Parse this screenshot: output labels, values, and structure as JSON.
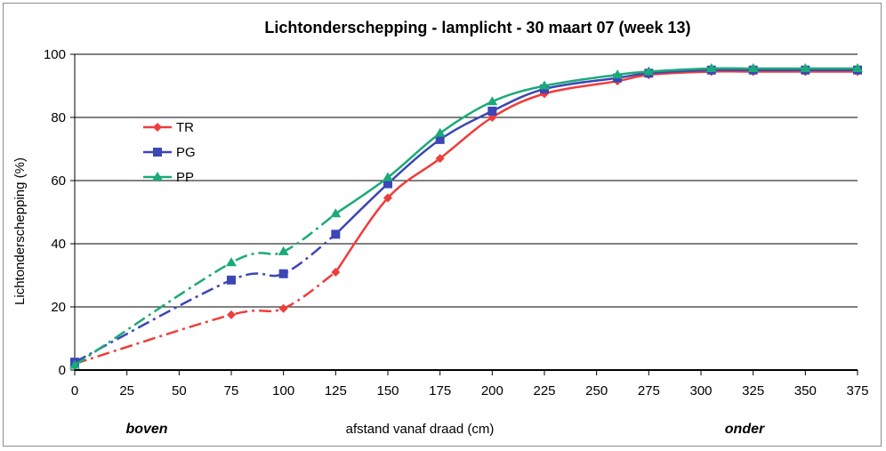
{
  "chart_data": {
    "type": "line",
    "title": "Lichtonderschepping - lamplicht  - 30 maart 07 (week 13)",
    "xlabel": "afstand vanaf draad (cm)",
    "ylabel": "Lichtonderschepping (%)",
    "xlim": [
      0,
      375
    ],
    "ylim": [
      0,
      100
    ],
    "x_ticks": [
      "0",
      "25",
      "50",
      "75",
      "100",
      "125",
      "150",
      "175",
      "200",
      "225",
      "250",
      "275",
      "300",
      "325",
      "350",
      "375"
    ],
    "y_ticks": [
      "0",
      "20",
      "40",
      "60",
      "80",
      "100"
    ],
    "grid": "horizontal",
    "legend_position": "left",
    "annotations": {
      "left": "boven",
      "right": "onder"
    },
    "series": [
      {
        "name": "TR",
        "color": "#f03c3c",
        "marker": "diamond",
        "x": [
          0,
          75,
          100,
          125,
          150,
          175,
          200,
          225,
          260,
          275,
          305,
          325,
          350,
          375
        ],
        "y": [
          2,
          17.5,
          19.5,
          31,
          54.5,
          67,
          80,
          87.5,
          91.5,
          93.5,
          94.5,
          94.5,
          94.5,
          94.5
        ]
      },
      {
        "name": "PG",
        "color": "#3c46b4",
        "marker": "square",
        "x": [
          0,
          75,
          100,
          125,
          150,
          175,
          200,
          225,
          260,
          275,
          305,
          325,
          350,
          375
        ],
        "y": [
          2.5,
          28.5,
          30.5,
          43,
          59,
          73,
          82,
          89,
          92.5,
          94,
          95,
          95,
          95,
          95
        ]
      },
      {
        "name": "PP",
        "color": "#1aaa7a",
        "marker": "triangle",
        "x": [
          0,
          75,
          100,
          125,
          150,
          175,
          200,
          225,
          260,
          275,
          305,
          325,
          350,
          375
        ],
        "y": [
          1.5,
          34,
          37.5,
          49.5,
          61,
          75,
          85,
          90,
          93.5,
          94.5,
          95.5,
          95.5,
          95.5,
          95.5
        ]
      }
    ]
  }
}
